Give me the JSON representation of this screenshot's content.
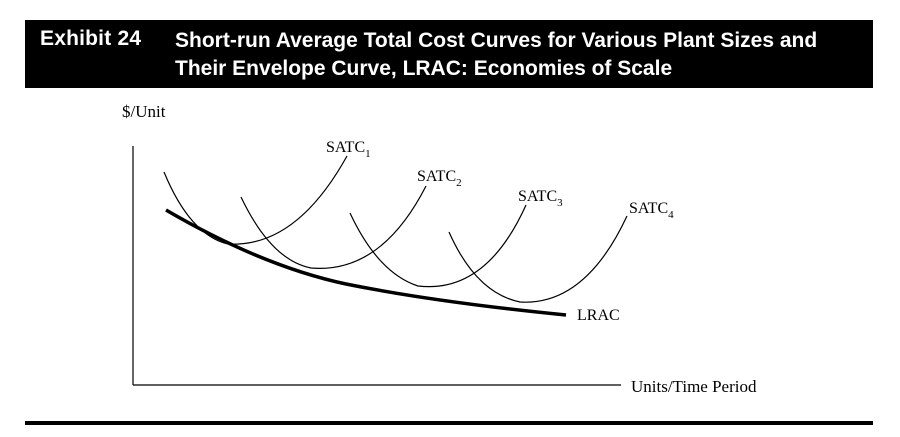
{
  "header": {
    "exhibit_label": "Exhibit 24",
    "title": "Short-run Average Total Cost Curves for Various Plant Sizes and Their Envelope Curve, LRAC: Economies of Scale"
  },
  "diagram": {
    "y_axis_label": "$/Unit",
    "x_axis_label": "Units/Time Period",
    "curves": [
      {
        "base": "SATC",
        "sub": "1"
      },
      {
        "base": "SATC",
        "sub": "2"
      },
      {
        "base": "SATC",
        "sub": "3"
      },
      {
        "base": "SATC",
        "sub": "4"
      }
    ],
    "envelope_label": "LRAC"
  }
}
